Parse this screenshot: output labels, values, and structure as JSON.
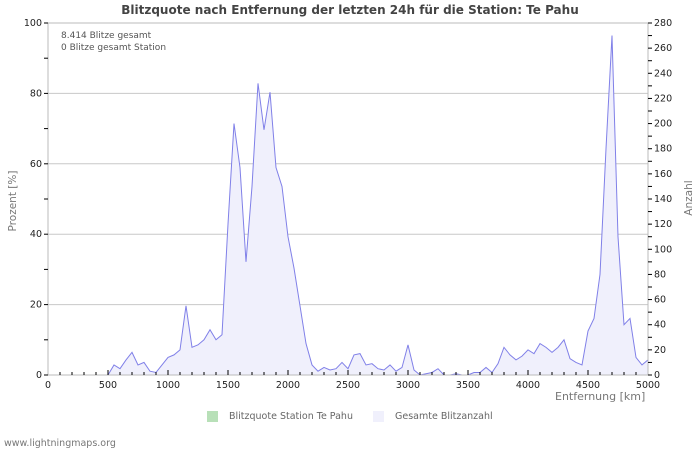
{
  "title": "Blitzquote nach Entfernung der letzten 24h für die Station: Te Pahu",
  "info": {
    "total": "8.414 Blitze gesamt",
    "station": "0 Blitze gesamt Station"
  },
  "axes": {
    "ylabel_left": "Prozent   [%]",
    "ylabel_right": "Anzahl",
    "xlabel": "Entfernung   [km]"
  },
  "legend": [
    {
      "label": "Blitzquote Station Te Pahu",
      "color": "#b8e0b8"
    },
    {
      "label": "Gesamte Blitzanzahl",
      "color": "#f0f0fc"
    }
  ],
  "footer": "www.lightningmaps.org",
  "colors": {
    "line": "#8080e8",
    "fill": "#f0f0fc",
    "grid": "#c8c8c8",
    "axis": "#bbbbbb"
  },
  "chart_data": {
    "type": "area",
    "title": "Blitzquote nach Entfernung der letzten 24h für die Station: Te Pahu",
    "xlabel": "Entfernung [km]",
    "ylabel_left": "Prozent [%]",
    "ylabel_right": "Anzahl",
    "xlim": [
      0,
      5000
    ],
    "ylim_left": [
      0,
      100
    ],
    "ylim_right": [
      0,
      280
    ],
    "x_ticks": [
      0,
      500,
      1000,
      1500,
      2000,
      2500,
      3000,
      3500,
      4000,
      4500,
      5000
    ],
    "y_ticks_left": [
      0,
      20,
      40,
      60,
      80,
      100
    ],
    "y_ticks_right": [
      0,
      20,
      40,
      60,
      80,
      100,
      120,
      140,
      160,
      180,
      200,
      220,
      240,
      260,
      280
    ],
    "grid": true,
    "legend_position": "bottom",
    "series": [
      {
        "name": "Gesamte Blitzanzahl",
        "axis": "right",
        "x": [
          0,
          500,
          550,
          600,
          650,
          700,
          750,
          800,
          850,
          900,
          950,
          1000,
          1050,
          1100,
          1150,
          1200,
          1250,
          1300,
          1350,
          1400,
          1450,
          1500,
          1550,
          1600,
          1650,
          1700,
          1750,
          1800,
          1850,
          1900,
          1950,
          2000,
          2050,
          2100,
          2150,
          2200,
          2250,
          2300,
          2350,
          2400,
          2450,
          2500,
          2550,
          2600,
          2650,
          2700,
          2750,
          2800,
          2850,
          2900,
          2950,
          3000,
          3050,
          3100,
          3150,
          3200,
          3250,
          3300,
          3350,
          3400,
          3450,
          3500,
          3550,
          3600,
          3650,
          3700,
          3750,
          3800,
          3850,
          3900,
          3950,
          4000,
          4050,
          4100,
          4150,
          4200,
          4250,
          4300,
          4350,
          4400,
          4450,
          4500,
          4550,
          4600,
          4650,
          4700,
          4750,
          4800,
          4850,
          4900,
          4950,
          5000
        ],
        "values": [
          0,
          0,
          8,
          5,
          12,
          18,
          8,
          10,
          3,
          2,
          8,
          14,
          16,
          20,
          55,
          22,
          24,
          28,
          36,
          28,
          32,
          120,
          200,
          165,
          90,
          150,
          232,
          195,
          225,
          165,
          150,
          110,
          85,
          55,
          25,
          8,
          3,
          6,
          4,
          5,
          10,
          5,
          16,
          17,
          8,
          9,
          5,
          4,
          8,
          3,
          6,
          24,
          4,
          0,
          1,
          2,
          5,
          0,
          0,
          1,
          0,
          0,
          2,
          2,
          6,
          2,
          9,
          22,
          16,
          12,
          15,
          20,
          17,
          25,
          22,
          18,
          22,
          28,
          13,
          10,
          8,
          35,
          45,
          80,
          180,
          270,
          110,
          40,
          45,
          14,
          8,
          12
        ]
      },
      {
        "name": "Blitzquote Station Te Pahu",
        "axis": "left",
        "x": [
          0,
          5000
        ],
        "values": [
          0,
          0
        ]
      }
    ]
  }
}
